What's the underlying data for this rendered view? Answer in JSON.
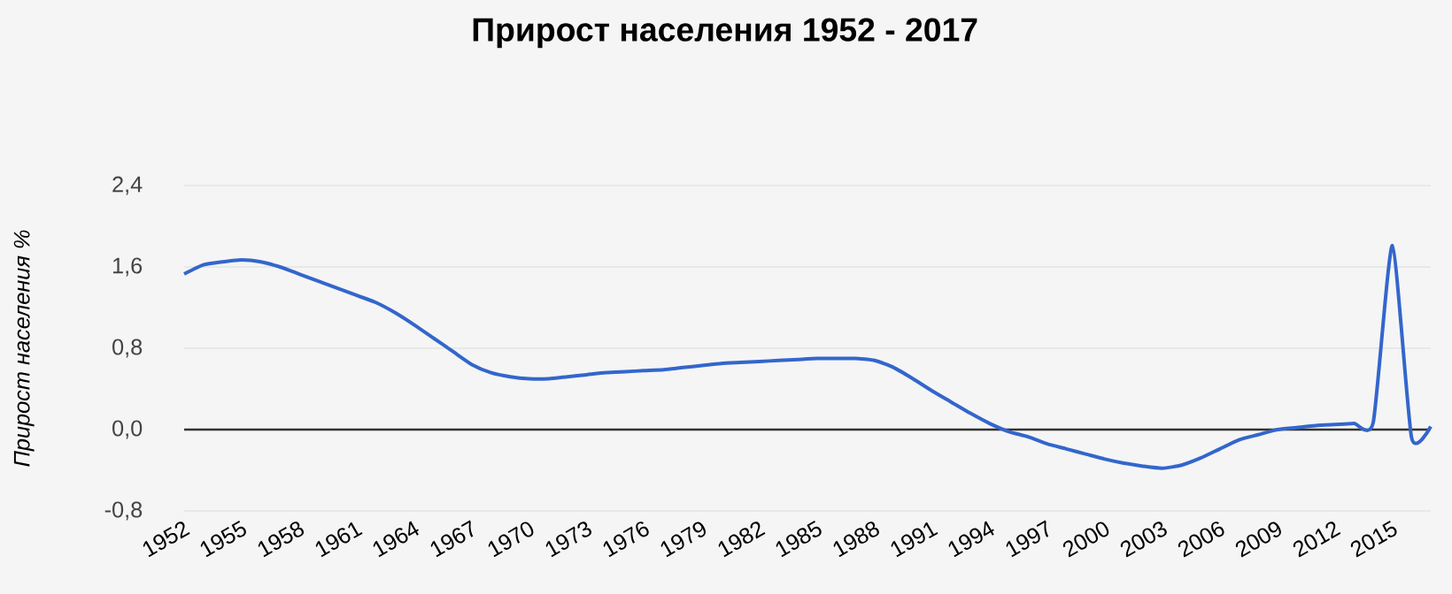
{
  "chart_data": {
    "type": "line",
    "title": "Прирост населения 1952 - 2017",
    "ylabel": "Прирост населения %",
    "x": [
      1952,
      1953,
      1954,
      1955,
      1956,
      1957,
      1958,
      1959,
      1960,
      1961,
      1962,
      1963,
      1964,
      1965,
      1966,
      1967,
      1968,
      1969,
      1970,
      1971,
      1972,
      1973,
      1974,
      1975,
      1976,
      1977,
      1978,
      1979,
      1980,
      1981,
      1982,
      1983,
      1984,
      1985,
      1986,
      1987,
      1988,
      1989,
      1990,
      1991,
      1992,
      1993,
      1994,
      1995,
      1996,
      1997,
      1998,
      1999,
      2000,
      2001,
      2002,
      2003,
      2004,
      2005,
      2006,
      2007,
      2008,
      2009,
      2010,
      2011,
      2012,
      2013,
      2014,
      2015,
      2016,
      2017
    ],
    "series": [
      {
        "color": "#3366cc",
        "values": [
          1.53,
          1.62,
          1.65,
          1.67,
          1.65,
          1.6,
          1.53,
          1.46,
          1.39,
          1.32,
          1.25,
          1.15,
          1.03,
          0.9,
          0.77,
          0.64,
          0.56,
          0.52,
          0.5,
          0.5,
          0.52,
          0.54,
          0.56,
          0.57,
          0.58,
          0.59,
          0.61,
          0.63,
          0.65,
          0.66,
          0.67,
          0.68,
          0.69,
          0.7,
          0.7,
          0.7,
          0.68,
          0.61,
          0.5,
          0.38,
          0.27,
          0.16,
          0.06,
          -0.02,
          -0.07,
          -0.14,
          -0.19,
          -0.24,
          -0.29,
          -0.33,
          -0.36,
          -0.38,
          -0.35,
          -0.28,
          -0.19,
          -0.1,
          -0.05,
          0.0,
          0.02,
          0.04,
          0.05,
          0.06,
          0.07,
          1.81,
          -0.08,
          0.03
        ]
      }
    ],
    "xlim": [
      1952,
      2017
    ],
    "ylim": [
      -0.8,
      2.4
    ],
    "xticks": [
      1952,
      1955,
      1958,
      1961,
      1964,
      1967,
      1970,
      1973,
      1976,
      1979,
      1982,
      1985,
      1988,
      1991,
      1994,
      1997,
      2000,
      2003,
      2006,
      2009,
      2012,
      2015
    ],
    "yticks": [
      {
        "value": -0.8,
        "label": "-0,8"
      },
      {
        "value": 0,
        "label": "0,0"
      },
      {
        "value": 0.8,
        "label": "0,8"
      },
      {
        "value": 1.6,
        "label": "1,6"
      },
      {
        "value": 2.4,
        "label": "2,4"
      }
    ],
    "grid": "y",
    "legend": false,
    "marker": "none",
    "line_style": "solid",
    "ref_lines": [
      {
        "axis": "y",
        "value": 0,
        "color": "#333333"
      }
    ]
  }
}
